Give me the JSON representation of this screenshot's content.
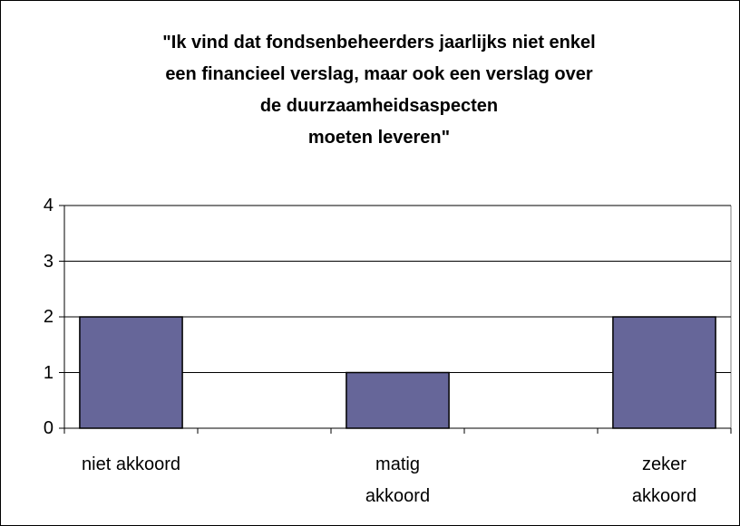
{
  "chart_data": {
    "type": "bar",
    "title": "\"Ik vind dat fondsenbeheerders jaarlijks niet enkel\neen financieel verslag, maar ook een verslag over\nde duurzaamheidsaspecten\nmoeten leveren\"",
    "categories": [
      "niet akkoord",
      null,
      "matig akkoord",
      null,
      "zeker akkoord"
    ],
    "values": [
      2,
      null,
      1,
      null,
      2
    ],
    "color": "#666699",
    "ylim": [
      0,
      4
    ],
    "yticks": [
      0,
      1,
      2,
      3,
      4
    ],
    "grid": true
  }
}
